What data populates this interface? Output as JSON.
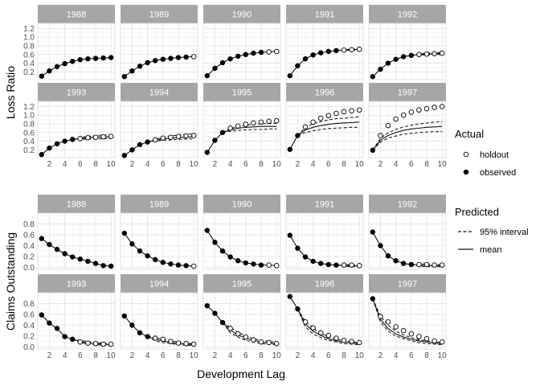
{
  "chart_data": {
    "type": "scatter",
    "facet_type": "facet-grid",
    "xlabel": "Development Lag",
    "x_ticks": [
      2,
      4,
      6,
      8,
      10
    ],
    "x_range": [
      0.5,
      10.5
    ],
    "years": [
      "1988",
      "1989",
      "1990",
      "1991",
      "1992",
      "1993",
      "1994",
      "1995",
      "1996",
      "1997"
    ],
    "legend": {
      "actual_title": "Actual",
      "actual_items": [
        {
          "name": "holdout",
          "marker": "open-circle"
        },
        {
          "name": "observed",
          "marker": "filled-circle"
        }
      ],
      "predicted_title": "Predicted",
      "predicted_items": [
        {
          "name": "95% interval",
          "line": "dashed"
        },
        {
          "name": "mean",
          "line": "solid"
        }
      ]
    },
    "panels": [
      {
        "ylabel": "Loss Ratio",
        "y_ticks": [
          0.2,
          0.4,
          0.6,
          0.8,
          1.0,
          1.2
        ],
        "y_tick_labels": [
          "0.2",
          "0.4",
          "0.6",
          "0.8",
          "1.0",
          "1.2"
        ],
        "y_range": [
          0.02,
          1.32
        ],
        "series": [
          {
            "year": "1988",
            "observed": [
              0.1,
              0.22,
              0.32,
              0.39,
              0.44,
              0.48,
              0.5,
              0.51,
              0.52,
              0.53
            ],
            "holdout": [],
            "mean": [
              0.1,
              0.22,
              0.32,
              0.39,
              0.44,
              0.48,
              0.5,
              0.51,
              0.52,
              0.53
            ],
            "lower": [],
            "upper": []
          },
          {
            "year": "1989",
            "observed": [
              0.09,
              0.22,
              0.33,
              0.41,
              0.46,
              0.49,
              0.51,
              0.53,
              0.54
            ],
            "holdout": [
              0.55
            ],
            "mean": [
              0.09,
              0.22,
              0.33,
              0.41,
              0.46,
              0.49,
              0.51,
              0.53,
              0.54,
              0.55
            ],
            "lower": [],
            "upper": []
          },
          {
            "year": "1990",
            "observed": [
              0.11,
              0.28,
              0.41,
              0.5,
              0.56,
              0.6,
              0.63,
              0.65
            ],
            "holdout": [
              0.66,
              0.67
            ],
            "mean": [
              0.11,
              0.28,
              0.41,
              0.5,
              0.56,
              0.6,
              0.63,
              0.65,
              0.66,
              0.67
            ],
            "lower": [],
            "upper": []
          },
          {
            "year": "1991",
            "observed": [
              0.11,
              0.34,
              0.5,
              0.59,
              0.64,
              0.67,
              0.69
            ],
            "holdout": [
              0.7,
              0.71,
              0.72
            ],
            "mean": [
              0.11,
              0.34,
              0.5,
              0.59,
              0.64,
              0.67,
              0.69,
              0.7,
              0.71,
              0.72
            ],
            "lower": [
              0,
              0,
              0,
              0,
              0,
              0,
              0.69,
              0.69,
              0.7,
              0.7
            ],
            "upper": [
              0,
              0,
              0,
              0,
              0,
              0,
              0.69,
              0.71,
              0.72,
              0.73
            ]
          },
          {
            "year": "1992",
            "observed": [
              0.09,
              0.26,
              0.4,
              0.49,
              0.55,
              0.58
            ],
            "holdout": [
              0.6,
              0.61,
              0.62,
              0.63
            ],
            "mean": [
              0.09,
              0.26,
              0.4,
              0.49,
              0.55,
              0.58,
              0.6,
              0.61,
              0.62,
              0.62
            ],
            "lower": [
              0,
              0,
              0,
              0,
              0,
              0.58,
              0.59,
              0.59,
              0.6,
              0.6
            ],
            "upper": [
              0,
              0,
              0,
              0,
              0,
              0.58,
              0.61,
              0.63,
              0.64,
              0.65
            ]
          },
          {
            "year": "1993",
            "observed": [
              0.09,
              0.24,
              0.34,
              0.4,
              0.44
            ],
            "holdout": [
              0.46,
              0.48,
              0.49,
              0.5,
              0.51
            ],
            "mean": [
              0.09,
              0.24,
              0.34,
              0.4,
              0.44,
              0.46,
              0.48,
              0.49,
              0.5,
              0.5
            ],
            "lower": [
              0,
              0,
              0,
              0,
              0.44,
              0.44,
              0.45,
              0.45,
              0.46,
              0.46
            ],
            "upper": [
              0,
              0,
              0,
              0,
              0.44,
              0.48,
              0.51,
              0.53,
              0.54,
              0.55
            ]
          },
          {
            "year": "1994",
            "observed": [
              0.07,
              0.2,
              0.32,
              0.38
            ],
            "holdout": [
              0.43,
              0.47,
              0.49,
              0.51,
              0.52,
              0.53
            ],
            "mean": [
              0.07,
              0.2,
              0.32,
              0.38,
              0.42,
              0.45,
              0.47,
              0.48,
              0.49,
              0.5
            ],
            "lower": [
              0,
              0,
              0,
              0.38,
              0.4,
              0.42,
              0.43,
              0.44,
              0.45,
              0.45
            ],
            "upper": [
              0,
              0,
              0,
              0.38,
              0.44,
              0.49,
              0.52,
              0.54,
              0.56,
              0.57
            ]
          },
          {
            "year": "1995",
            "observed": [
              0.14,
              0.42,
              0.6
            ],
            "holdout": [
              0.7,
              0.75,
              0.79,
              0.82,
              0.84,
              0.86,
              0.87
            ],
            "mean": [
              0.14,
              0.42,
              0.6,
              0.66,
              0.7,
              0.72,
              0.73,
              0.74,
              0.74,
              0.74
            ],
            "lower": [
              0,
              0,
              0.6,
              0.63,
              0.65,
              0.66,
              0.67,
              0.67,
              0.68,
              0.68
            ],
            "upper": [
              0,
              0,
              0.6,
              0.69,
              0.74,
              0.77,
              0.79,
              0.8,
              0.81,
              0.81
            ]
          },
          {
            "year": "1996",
            "observed": [
              0.21,
              0.53
            ],
            "holdout": [
              0.73,
              0.84,
              0.93,
              0.99,
              1.04,
              1.08,
              1.1,
              1.12
            ],
            "mean": [
              0.21,
              0.53,
              0.66,
              0.72,
              0.76,
              0.79,
              0.81,
              0.82,
              0.83,
              0.84
            ],
            "lower": [
              0,
              0.53,
              0.6,
              0.64,
              0.67,
              0.69,
              0.7,
              0.71,
              0.72,
              0.72
            ],
            "upper": [
              0,
              0.53,
              0.72,
              0.8,
              0.85,
              0.89,
              0.92,
              0.93,
              0.95,
              0.96
            ]
          },
          {
            "year": "1997",
            "observed": [
              0.19
            ],
            "holdout": [
              0.53,
              0.76,
              0.91,
              1.0,
              1.07,
              1.12,
              1.15,
              1.18,
              1.2
            ],
            "mean": [
              0.19,
              0.42,
              0.53,
              0.6,
              0.65,
              0.68,
              0.7,
              0.72,
              0.73,
              0.74
            ],
            "lower": [
              0.19,
              0.38,
              0.47,
              0.52,
              0.56,
              0.58,
              0.6,
              0.61,
              0.62,
              0.62
            ],
            "upper": [
              0.19,
              0.47,
              0.59,
              0.67,
              0.73,
              0.77,
              0.8,
              0.82,
              0.84,
              0.85
            ]
          }
        ]
      },
      {
        "ylabel": "Claims Outstanding",
        "y_ticks": [
          0.0,
          0.2,
          0.4,
          0.6,
          0.8
        ],
        "y_tick_labels": [
          "0.0",
          "0.2",
          "0.4",
          "0.6",
          "0.8"
        ],
        "y_range": [
          -0.04,
          1.0
        ],
        "series": [
          {
            "year": "1988",
            "observed": [
              0.53,
              0.42,
              0.33,
              0.25,
              0.19,
              0.15,
              0.11,
              0.07,
              0.03,
              0.02
            ],
            "holdout": [],
            "mean": [
              0.53,
              0.42,
              0.33,
              0.25,
              0.19,
              0.15,
              0.11,
              0.07,
              0.03,
              0.02
            ],
            "lower": [],
            "upper": []
          },
          {
            "year": "1989",
            "observed": [
              0.63,
              0.43,
              0.3,
              0.21,
              0.14,
              0.09,
              0.06,
              0.04,
              0.03
            ],
            "holdout": [
              0.02
            ],
            "mean": [
              0.63,
              0.43,
              0.3,
              0.21,
              0.14,
              0.09,
              0.06,
              0.04,
              0.03,
              0.02
            ],
            "lower": [],
            "upper": []
          },
          {
            "year": "1990",
            "observed": [
              0.68,
              0.46,
              0.3,
              0.19,
              0.12,
              0.08,
              0.06,
              0.04
            ],
            "holdout": [
              0.04,
              0.03
            ],
            "mean": [
              0.68,
              0.46,
              0.3,
              0.19,
              0.12,
              0.08,
              0.06,
              0.04,
              0.04,
              0.03
            ],
            "lower": [],
            "upper": []
          },
          {
            "year": "1991",
            "observed": [
              0.59,
              0.35,
              0.19,
              0.11,
              0.07,
              0.05,
              0.04
            ],
            "holdout": [
              0.04,
              0.04,
              0.03
            ],
            "mean": [
              0.59,
              0.35,
              0.19,
              0.11,
              0.07,
              0.05,
              0.04,
              0.03,
              0.03,
              0.02
            ],
            "lower": [
              0,
              0,
              0,
              0,
              0,
              0,
              0.04,
              0.02,
              0.01,
              0.01
            ],
            "upper": [
              0,
              0,
              0,
              0,
              0,
              0,
              0.04,
              0.05,
              0.05,
              0.04
            ]
          },
          {
            "year": "1992",
            "observed": [
              0.65,
              0.4,
              0.21,
              0.12,
              0.07,
              0.05
            ],
            "holdout": [
              0.05,
              0.05,
              0.04,
              0.04
            ],
            "mean": [
              0.65,
              0.4,
              0.21,
              0.12,
              0.07,
              0.05,
              0.04,
              0.03,
              0.03,
              0.02
            ],
            "lower": [
              0,
              0,
              0,
              0,
              0,
              0.05,
              0.02,
              0.01,
              0.01,
              0.01
            ],
            "upper": [
              0,
              0,
              0,
              0,
              0,
              0.05,
              0.06,
              0.06,
              0.05,
              0.05
            ]
          },
          {
            "year": "1993",
            "observed": [
              0.59,
              0.44,
              0.34,
              0.19,
              0.14
            ],
            "holdout": [
              0.09,
              0.07,
              0.06,
              0.05,
              0.05
            ],
            "mean": [
              0.59,
              0.44,
              0.34,
              0.19,
              0.14,
              0.1,
              0.07,
              0.06,
              0.05,
              0.04
            ],
            "lower": [
              0,
              0,
              0,
              0,
              0.14,
              0.08,
              0.05,
              0.04,
              0.03,
              0.02
            ],
            "upper": [
              0,
              0,
              0,
              0,
              0.14,
              0.12,
              0.1,
              0.08,
              0.07,
              0.06
            ]
          },
          {
            "year": "1994",
            "observed": [
              0.57,
              0.4,
              0.26,
              0.19
            ],
            "holdout": [
              0.16,
              0.14,
              0.1,
              0.07,
              0.06,
              0.05
            ],
            "mean": [
              0.57,
              0.4,
              0.26,
              0.19,
              0.14,
              0.11,
              0.08,
              0.06,
              0.05,
              0.04
            ],
            "lower": [
              0,
              0,
              0,
              0.19,
              0.11,
              0.08,
              0.06,
              0.04,
              0.03,
              0.02
            ],
            "upper": [
              0,
              0,
              0,
              0.19,
              0.17,
              0.14,
              0.11,
              0.09,
              0.07,
              0.06
            ]
          },
          {
            "year": "1995",
            "observed": [
              0.76,
              0.62,
              0.45
            ],
            "holdout": [
              0.34,
              0.24,
              0.18,
              0.13,
              0.09,
              0.08,
              0.06
            ],
            "mean": [
              0.76,
              0.62,
              0.45,
              0.31,
              0.22,
              0.16,
              0.12,
              0.09,
              0.07,
              0.06
            ],
            "lower": [
              0,
              0,
              0.45,
              0.26,
              0.18,
              0.12,
              0.09,
              0.06,
              0.05,
              0.04
            ],
            "upper": [
              0,
              0,
              0.45,
              0.36,
              0.27,
              0.2,
              0.15,
              0.12,
              0.1,
              0.08
            ]
          },
          {
            "year": "1996",
            "observed": [
              0.93,
              0.7
            ],
            "holdout": [
              0.46,
              0.35,
              0.26,
              0.21,
              0.16,
              0.12,
              0.1,
              0.08
            ],
            "mean": [
              0.93,
              0.7,
              0.42,
              0.29,
              0.21,
              0.15,
              0.11,
              0.09,
              0.07,
              0.06
            ],
            "lower": [
              0,
              0.7,
              0.37,
              0.24,
              0.17,
              0.12,
              0.09,
              0.06,
              0.05,
              0.04
            ],
            "upper": [
              0,
              0.7,
              0.47,
              0.34,
              0.25,
              0.19,
              0.14,
              0.11,
              0.09,
              0.08
            ]
          },
          {
            "year": "1997",
            "observed": [
              0.89
            ],
            "holdout": [
              0.56,
              0.46,
              0.37,
              0.3,
              0.24,
              0.19,
              0.15,
              0.11,
              0.09
            ],
            "mean": [
              0.89,
              0.51,
              0.34,
              0.24,
              0.18,
              0.14,
              0.11,
              0.09,
              0.07,
              0.06
            ],
            "lower": [
              0.89,
              0.46,
              0.29,
              0.2,
              0.15,
              0.11,
              0.08,
              0.06,
              0.05,
              0.04
            ],
            "upper": [
              0.89,
              0.57,
              0.4,
              0.29,
              0.22,
              0.17,
              0.13,
              0.11,
              0.09,
              0.08
            ]
          }
        ]
      }
    ]
  }
}
